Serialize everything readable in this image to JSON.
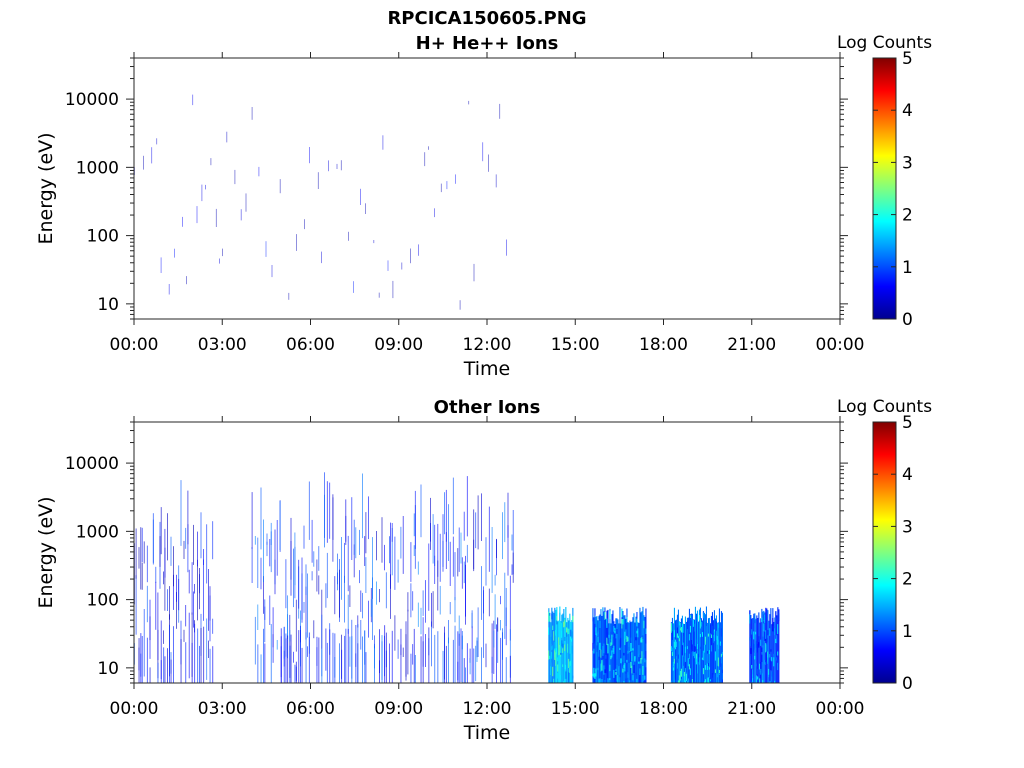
{
  "figure": {
    "title": "RPCICA150605.PNG"
  },
  "chart_data": [
    {
      "type": "heatmap",
      "title": "H+ He++ Ions",
      "xlabel": "Time",
      "ylabel": "Energy (eV)",
      "yscale": "log",
      "ylim": [
        6,
        40000
      ],
      "yticks": [
        "10",
        "100",
        "1000",
        "10000"
      ],
      "yticks_values": [
        10,
        100,
        1000,
        10000
      ],
      "xticks": [
        "00:00",
        "03:00",
        "06:00",
        "09:00",
        "12:00",
        "15:00",
        "18:00",
        "21:00",
        "00:00"
      ],
      "xticks_hours": [
        0,
        3,
        6,
        9,
        12,
        15,
        18,
        21,
        24
      ],
      "xlim_hours": [
        0,
        24
      ],
      "colorbar": {
        "label": "Log Counts",
        "ticks": [
          "0",
          "1",
          "2",
          "3",
          "4",
          "5"
        ],
        "range": [
          0,
          5
        ],
        "colormap": "jet"
      },
      "data_segments": [
        {
          "start": "00:00",
          "end": "12:50",
          "energy_range_eV": [
            6,
            10000
          ],
          "typical_log_counts": 0.3,
          "density": "sparse"
        }
      ]
    },
    {
      "type": "heatmap",
      "title": "Other Ions",
      "xlabel": "Time",
      "ylabel": "Energy (eV)",
      "yscale": "log",
      "ylim": [
        6,
        40000
      ],
      "yticks": [
        "10",
        "100",
        "1000",
        "10000"
      ],
      "yticks_values": [
        10,
        100,
        1000,
        10000
      ],
      "xticks": [
        "00:00",
        "03:00",
        "06:00",
        "09:00",
        "12:00",
        "15:00",
        "18:00",
        "21:00",
        "00:00"
      ],
      "xticks_hours": [
        0,
        3,
        6,
        9,
        12,
        15,
        18,
        21,
        24
      ],
      "xlim_hours": [
        0,
        24
      ],
      "colorbar": {
        "label": "Log Counts",
        "ticks": [
          "0",
          "1",
          "2",
          "3",
          "4",
          "5"
        ],
        "range": [
          0,
          5
        ],
        "colormap": "jet"
      },
      "data_segments": [
        {
          "start": "00:00",
          "end": "02:40",
          "energy_range_eV": [
            6,
            5000
          ],
          "typical_log_counts": 0.6,
          "density": "striped"
        },
        {
          "start": "04:00",
          "end": "12:55",
          "energy_range_eV": [
            6,
            5000
          ],
          "typical_log_counts": 0.8,
          "density": "striped"
        },
        {
          "start": "14:05",
          "end": "14:55",
          "energy_range_eV": [
            6,
            80
          ],
          "typical_log_counts": 1.5,
          "density": "dense"
        },
        {
          "start": "15:35",
          "end": "17:25",
          "energy_range_eV": [
            6,
            80
          ],
          "typical_log_counts": 1.1,
          "density": "dense"
        },
        {
          "start": "18:15",
          "end": "20:00",
          "energy_range_eV": [
            6,
            80
          ],
          "typical_log_counts": 1.2,
          "density": "dense"
        },
        {
          "start": "20:55",
          "end": "21:55",
          "energy_range_eV": [
            6,
            80
          ],
          "typical_log_counts": 1.0,
          "density": "dense"
        }
      ]
    }
  ]
}
